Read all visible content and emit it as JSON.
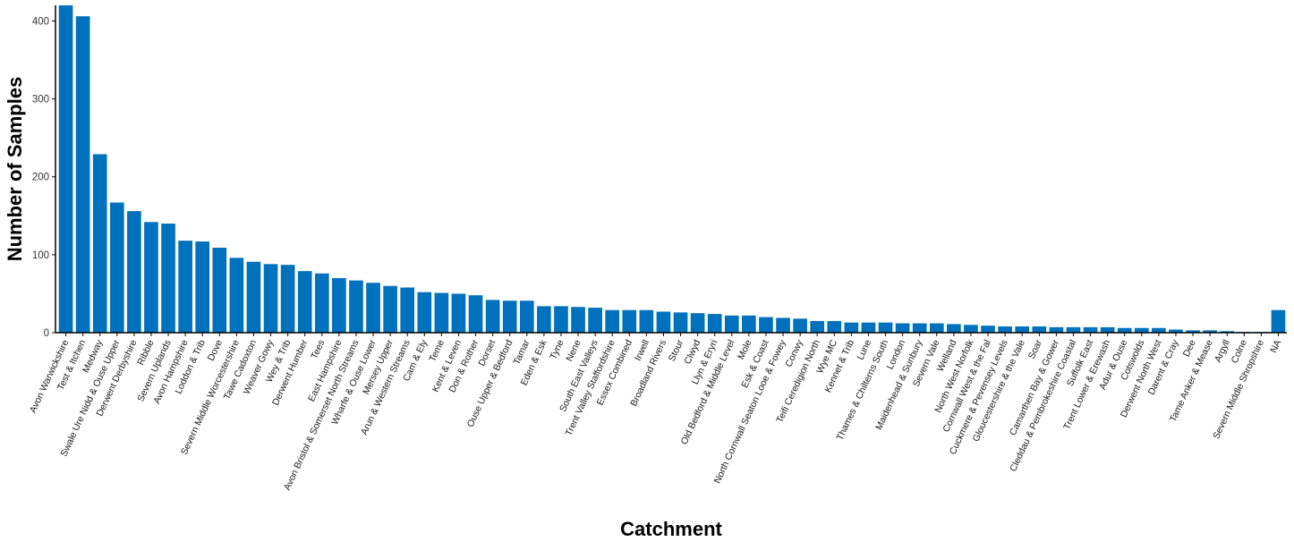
{
  "chart_data": {
    "type": "bar",
    "title": "",
    "xlabel": "Catchment",
    "ylabel": "Number of Samples",
    "ylim": [
      0,
      420
    ],
    "yticks": [
      0,
      100,
      200,
      300,
      400
    ],
    "grid": false,
    "legend": "none",
    "bar_color": "#0071BC",
    "categories": [
      "Avon Warwickshire",
      "Test & Itchen",
      "Medway",
      "Swale Ure Nidd & Ouse Upper",
      "Derwent Derbyshire",
      "Ribble",
      "Severn Uplands",
      "Avon Hampshire",
      "Loddon & Trib",
      "Dove",
      "Severn Middle Worcestershire",
      "Tawe Cadoxton",
      "Weaver Gowy",
      "Wey & Trib",
      "Derwent Humber",
      "Tees",
      "East Hampshire",
      "Avon Bristol & Somerset North Streams",
      "Wharfe & Ouse Lower",
      "Mersey Upper",
      "Arun & Western Streams",
      "Cam & Ely",
      "Teme",
      "Kent & Leven",
      "Don & Rother",
      "Dorset",
      "Ouse Upper & Bedford",
      "Tamar",
      "Eden & Esk",
      "Tyne",
      "Nene",
      "South East Valleys",
      "Trent Valley Staffordshire",
      "Essex Combined",
      "Irwell",
      "Broadland Rivers",
      "Stour",
      "Clwyd",
      "Llyn & Eryri",
      "Old Bedford & Middle Level",
      "Mole",
      "Esk & Coast",
      "North Cornwall Seaton Looe & Fowey",
      "Conwy",
      "Teifi Ceredigion North",
      "Wye MC",
      "Kennet & Trib",
      "Lune",
      "Thames & Chilterns South",
      "London",
      "Maidenhead & Sunbury",
      "Severn Vale",
      "Welland",
      "North West Norfolk",
      "Cornwall West & the Fal",
      "Cuckmere & Pevensey Levels",
      "Gloucestershire & the Vale",
      "Soar",
      "Camarthen Bay & Gower",
      "Cleddau & Pembrokeshire Coastal",
      "Suffolk East",
      "Trent Lower & Erewash",
      "Adur & Ouse",
      "Cotswolds",
      "Derwent North West",
      "Darent & Cray",
      "Dee",
      "Tame Anker & Mease",
      "Argyll",
      "Colne",
      "Severn Middle Shropshire",
      "NA"
    ],
    "values": [
      420,
      406,
      229,
      167,
      156,
      142,
      140,
      118,
      117,
      109,
      96,
      91,
      88,
      87,
      79,
      76,
      70,
      67,
      64,
      60,
      58,
      52,
      51,
      50,
      48,
      42,
      41,
      41,
      34,
      34,
      33,
      32,
      29,
      29,
      29,
      27,
      26,
      25,
      24,
      22,
      22,
      20,
      19,
      18,
      15,
      15,
      13,
      13,
      13,
      12,
      12,
      12,
      11,
      10,
      9,
      8,
      8,
      8,
      7,
      7,
      7,
      7,
      6,
      6,
      6,
      4,
      3,
      3,
      2,
      1,
      1,
      29
    ]
  }
}
